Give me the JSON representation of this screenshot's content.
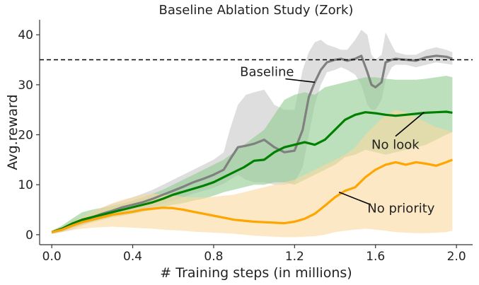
{
  "chart_data": {
    "type": "line",
    "title": "Baseline Ablation Study (Zork)",
    "xlabel": "# Training steps (in millions)",
    "ylabel": "Avg.reward",
    "xlim": [
      -0.06,
      2.08
    ],
    "ylim": [
      -2,
      43
    ],
    "x_ticks": [
      0.0,
      0.4,
      0.8,
      1.2,
      1.6,
      2.0
    ],
    "x_tick_labels": [
      "0.0",
      "0.4",
      "0.8",
      "1.2",
      "1.6",
      "2.0"
    ],
    "y_ticks": [
      0,
      10,
      20,
      30,
      40
    ],
    "y_tick_labels": [
      "0",
      "10",
      "20",
      "30",
      "40"
    ],
    "grid": false,
    "reference_line": {
      "y": 35,
      "style": "dashed",
      "color": "#000000"
    },
    "series": [
      {
        "name": "Baseline",
        "color": "#808080",
        "band_color": "#c8c8c8",
        "x": [
          0.0,
          0.05,
          0.1,
          0.15,
          0.2,
          0.25,
          0.3,
          0.35,
          0.4,
          0.45,
          0.5,
          0.55,
          0.6,
          0.65,
          0.7,
          0.75,
          0.8,
          0.85,
          0.88,
          0.92,
          0.96,
          1.0,
          1.05,
          1.1,
          1.15,
          1.2,
          1.24,
          1.27,
          1.3,
          1.33,
          1.36,
          1.4,
          1.43,
          1.46,
          1.5,
          1.53,
          1.56,
          1.58,
          1.6,
          1.63,
          1.65,
          1.68,
          1.7,
          1.75,
          1.8,
          1.85,
          1.9,
          1.95,
          1.98
        ],
        "y": [
          0.5,
          1.0,
          1.8,
          2.6,
          3.5,
          4.2,
          4.8,
          5.5,
          6.0,
          6.5,
          7.2,
          8.0,
          8.8,
          9.6,
          10.5,
          11.2,
          12.0,
          13.0,
          15.0,
          17.5,
          17.8,
          18.2,
          19.0,
          17.5,
          16.5,
          16.8,
          21.0,
          27.5,
          30.5,
          33.0,
          34.5,
          35.0,
          35.2,
          34.8,
          35.2,
          35.8,
          32.5,
          30.0,
          29.5,
          30.5,
          34.5,
          35.0,
          35.2,
          35.0,
          34.8,
          35.5,
          35.8,
          35.6,
          35.2
        ],
        "lower": [
          0.2,
          0.5,
          1.0,
          1.8,
          2.6,
          3.2,
          3.6,
          4.2,
          4.6,
          5.0,
          5.6,
          6.2,
          6.8,
          7.5,
          8.2,
          8.8,
          9.4,
          10.2,
          11.0,
          12.0,
          11.0,
          10.5,
          10.5,
          10.0,
          10.0,
          10.5,
          13.5,
          20.0,
          26.0,
          30.0,
          32.5,
          33.0,
          33.5,
          33.0,
          32.0,
          30.0,
          26.0,
          25.0,
          25.0,
          27.0,
          31.0,
          33.5,
          34.0,
          34.0,
          33.5,
          34.0,
          34.5,
          34.2,
          34.0
        ],
        "upper": [
          0.8,
          1.6,
          2.8,
          3.6,
          4.5,
          5.4,
          6.2,
          6.8,
          7.5,
          8.2,
          9.0,
          10.0,
          11.0,
          12.0,
          13.0,
          14.0,
          15.0,
          16.5,
          21.0,
          26.0,
          28.0,
          28.5,
          29.0,
          26.0,
          25.0,
          25.0,
          33.0,
          36.5,
          38.5,
          39.0,
          38.0,
          37.5,
          37.0,
          37.0,
          39.0,
          41.0,
          40.0,
          36.0,
          35.0,
          36.0,
          40.5,
          38.0,
          36.5,
          36.0,
          36.0,
          37.0,
          37.5,
          37.0,
          36.5
        ]
      },
      {
        "name": "No look",
        "color": "#008000",
        "band_color": "#8fc98f",
        "x": [
          0.0,
          0.05,
          0.1,
          0.15,
          0.2,
          0.25,
          0.3,
          0.35,
          0.4,
          0.45,
          0.5,
          0.55,
          0.6,
          0.65,
          0.7,
          0.75,
          0.8,
          0.85,
          0.9,
          0.95,
          1.0,
          1.05,
          1.1,
          1.15,
          1.2,
          1.25,
          1.3,
          1.35,
          1.4,
          1.45,
          1.5,
          1.55,
          1.6,
          1.65,
          1.7,
          1.75,
          1.8,
          1.85,
          1.9,
          1.95,
          1.98
        ],
        "y": [
          0.5,
          1.2,
          2.2,
          3.0,
          3.5,
          4.0,
          4.5,
          5.0,
          5.5,
          6.0,
          6.5,
          7.2,
          8.0,
          8.6,
          9.2,
          9.8,
          10.5,
          11.5,
          12.5,
          13.5,
          14.8,
          15.0,
          16.5,
          17.5,
          18.0,
          18.5,
          18.0,
          19.0,
          21.0,
          23.0,
          24.0,
          24.5,
          24.3,
          24.0,
          23.8,
          24.0,
          24.2,
          24.4,
          24.5,
          24.6,
          24.4
        ],
        "lower": [
          0.2,
          0.6,
          1.4,
          2.0,
          2.5,
          3.0,
          3.5,
          3.8,
          4.2,
          4.6,
          5.0,
          5.5,
          6.0,
          6.3,
          6.8,
          7.2,
          7.8,
          8.5,
          9.0,
          9.5,
          10.0,
          10.0,
          10.5,
          10.5,
          10.0,
          11.0,
          12.0,
          13.0,
          14.0,
          15.5,
          16.0,
          17.0,
          16.5,
          16.0,
          16.5,
          17.0,
          17.5,
          18.0,
          19.0,
          20.0,
          20.5
        ],
        "upper": [
          0.8,
          1.8,
          3.2,
          4.5,
          5.0,
          5.4,
          5.8,
          6.2,
          6.8,
          7.5,
          8.2,
          9.0,
          10.0,
          11.0,
          12.0,
          13.0,
          14.0,
          15.0,
          16.5,
          18.0,
          19.5,
          21.0,
          24.0,
          27.0,
          28.0,
          28.5,
          28.0,
          29.5,
          30.0,
          30.5,
          31.0,
          31.5,
          31.5,
          31.2,
          31.0,
          31.0,
          31.0,
          31.2,
          31.5,
          31.8,
          31.5
        ]
      },
      {
        "name": "No priority",
        "color": "#ffa500",
        "band_color": "#fcd8a0",
        "x": [
          0.0,
          0.05,
          0.1,
          0.15,
          0.2,
          0.25,
          0.3,
          0.35,
          0.4,
          0.45,
          0.5,
          0.55,
          0.6,
          0.65,
          0.7,
          0.75,
          0.8,
          0.85,
          0.9,
          0.95,
          1.0,
          1.05,
          1.1,
          1.15,
          1.2,
          1.25,
          1.3,
          1.35,
          1.4,
          1.45,
          1.5,
          1.55,
          1.6,
          1.65,
          1.7,
          1.75,
          1.8,
          1.85,
          1.9,
          1.95,
          1.98
        ],
        "y": [
          0.5,
          1.0,
          1.8,
          2.5,
          3.0,
          3.5,
          4.0,
          4.3,
          4.6,
          5.0,
          5.2,
          5.4,
          5.3,
          5.0,
          4.6,
          4.2,
          3.8,
          3.4,
          3.0,
          2.8,
          2.6,
          2.5,
          2.4,
          2.3,
          2.6,
          3.2,
          4.2,
          5.8,
          7.5,
          8.8,
          9.5,
          11.5,
          13.0,
          14.0,
          14.5,
          14.0,
          14.5,
          14.2,
          13.8,
          14.5,
          15.0
        ],
        "lower": [
          0.2,
          0.5,
          0.9,
          1.2,
          1.4,
          1.5,
          1.6,
          1.5,
          1.4,
          1.3,
          1.2,
          1.0,
          0.9,
          0.8,
          0.6,
          0.5,
          0.4,
          0.3,
          0.2,
          0.0,
          -0.2,
          -0.3,
          -0.4,
          -0.5,
          -0.5,
          -0.4,
          -0.3,
          0.0,
          0.5,
          0.8,
          1.0,
          1.2,
          1.0,
          0.8,
          0.5,
          0.4,
          0.3,
          0.3,
          0.4,
          0.5,
          0.8
        ],
        "upper": [
          0.8,
          1.6,
          2.6,
          3.6,
          4.6,
          5.5,
          6.3,
          7.0,
          7.5,
          8.0,
          8.2,
          8.0,
          7.8,
          7.6,
          7.5,
          7.5,
          7.6,
          7.8,
          8.0,
          8.5,
          9.0,
          9.5,
          10.0,
          10.5,
          11.0,
          12.0,
          13.0,
          14.0,
          15.0,
          16.0,
          17.5,
          20.0,
          22.0,
          24.0,
          25.0,
          24.5,
          23.5,
          22.5,
          21.5,
          21.0,
          20.5
        ]
      }
    ],
    "annotations": [
      {
        "text": "Baseline",
        "x": 0.93,
        "y": 32.6,
        "target_x": 1.3,
        "target_y": 30.5
      },
      {
        "text": "No look",
        "x": 1.58,
        "y": 18.0,
        "target_x": 1.84,
        "target_y": 24.5
      },
      {
        "text": "No priority",
        "x": 1.56,
        "y": 5.3,
        "target_x": 1.42,
        "target_y": 8.5
      }
    ]
  }
}
